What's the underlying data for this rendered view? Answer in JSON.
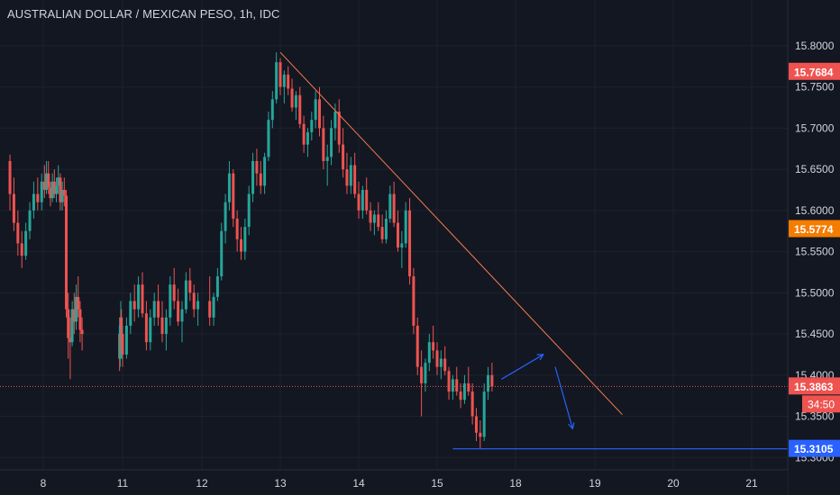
{
  "header": {
    "title": "AUSTRALIAN DOLLAR / MEXICAN PESO, 1h, IDC"
  },
  "colors": {
    "background": "#131722",
    "grid": "#1e222d",
    "text": "#d1d4dc",
    "up": "#26a69a",
    "down": "#ef5350",
    "trendline": "#f7525f",
    "drawing": "#2962ff",
    "orange_badge": "#f57c00"
  },
  "chart_data": {
    "type": "candlestick",
    "title": "AUSTRALIAN DOLLAR / MEXICAN PESO, 1h, IDC",
    "x_ticks": [
      "8",
      "11",
      "12",
      "13",
      "14",
      "15",
      "18",
      "19",
      "20",
      "21"
    ],
    "y_ticks": [
      "15.3000",
      "15.3500",
      "15.4000",
      "15.4500",
      "15.5000",
      "15.5500",
      "15.6000",
      "15.6500",
      "15.7000",
      "15.7500",
      "15.8000"
    ],
    "ylim": [
      15.285,
      15.825
    ],
    "grid": true,
    "price_badges": [
      {
        "value": "15.7684",
        "color": "#ef5350"
      },
      {
        "value": "15.5774",
        "color": "#f57c00"
      },
      {
        "value": "15.3863",
        "color": "#ef5350"
      },
      {
        "value": "15.3105",
        "color": "#2962ff"
      }
    ],
    "countdown": "34:50",
    "trendline": {
      "start": [
        13.0,
        15.792
      ],
      "end": [
        19.35,
        15.352
      ]
    },
    "support_level": {
      "value": 15.3105,
      "from_x": 15.2
    },
    "current_price": 15.3863,
    "projection_arrows": [
      {
        "from": [
          15.82,
          15.395
        ],
        "to": [
          18.35,
          15.425
        ]
      },
      {
        "from": [
          18.5,
          15.41
        ],
        "to": [
          18.72,
          15.335
        ]
      }
    ],
    "candles": [
      [
        7.58,
        15.66,
        15.668,
        15.6,
        15.62
      ],
      [
        7.63,
        15.62,
        15.64,
        15.575,
        15.585
      ],
      [
        7.68,
        15.585,
        15.6,
        15.545,
        15.56
      ],
      [
        7.73,
        15.56,
        15.575,
        15.53,
        15.545
      ],
      [
        7.78,
        15.545,
        15.585,
        15.54,
        15.575
      ],
      [
        7.83,
        15.575,
        15.61,
        15.565,
        15.6
      ],
      [
        7.88,
        15.6,
        15.635,
        15.59,
        15.62
      ],
      [
        7.93,
        15.62,
        15.64,
        15.6,
        15.61
      ],
      [
        7.98,
        15.61,
        15.645,
        15.6,
        15.635
      ],
      [
        8.03,
        15.635,
        15.655,
        15.615,
        15.625
      ],
      [
        8.08,
        15.625,
        15.66,
        15.62,
        15.645
      ],
      [
        8.13,
        15.645,
        15.66,
        15.62,
        15.628
      ],
      [
        8.18,
        15.628,
        15.635,
        15.605,
        15.615
      ],
      [
        8.23,
        15.615,
        15.645,
        15.61,
        15.635
      ],
      [
        8.28,
        15.635,
        15.65,
        15.615,
        15.62
      ],
      [
        8.33,
        15.62,
        15.64,
        15.61,
        15.63
      ],
      [
        8.38,
        15.63,
        15.655,
        15.62,
        15.64
      ],
      [
        8.43,
        15.64,
        15.645,
        15.6,
        15.61
      ],
      [
        8.48,
        15.61,
        15.635,
        15.6,
        15.625
      ],
      [
        8.53,
        15.625,
        15.64,
        15.605,
        15.618
      ],
      [
        8.58,
        15.618,
        15.625,
        15.47,
        15.48
      ],
      [
        8.63,
        15.48,
        15.5,
        15.42,
        15.445
      ],
      [
        8.68,
        15.445,
        15.47,
        15.395,
        15.44
      ],
      [
        8.73,
        15.44,
        15.49,
        15.435,
        15.48
      ],
      [
        8.78,
        15.48,
        15.5,
        15.45,
        15.465
      ],
      [
        8.83,
        15.465,
        15.51,
        15.455,
        15.495
      ],
      [
        8.88,
        15.495,
        15.52,
        15.47,
        15.48
      ],
      [
        8.93,
        15.48,
        15.49,
        15.44,
        15.455
      ],
      [
        8.98,
        15.455,
        15.47,
        15.43,
        15.45
      ],
      [
        10.75,
        15.45,
        15.47,
        15.405,
        15.42
      ],
      [
        10.8,
        15.42,
        15.47,
        15.41,
        15.46
      ],
      [
        10.85,
        15.46,
        15.49,
        15.44,
        15.47
      ],
      [
        10.9,
        15.47,
        15.48,
        15.43,
        15.44
      ],
      [
        10.95,
        15.44,
        15.46,
        15.42,
        15.45
      ],
      [
        11.0,
        15.45,
        15.46,
        15.41,
        15.425
      ],
      [
        11.05,
        15.425,
        15.47,
        15.42,
        15.46
      ],
      [
        11.1,
        15.46,
        15.5,
        15.45,
        15.49
      ],
      [
        11.15,
        15.49,
        15.51,
        15.465,
        15.48
      ],
      [
        11.2,
        15.48,
        15.52,
        15.47,
        15.51
      ],
      [
        11.25,
        15.51,
        15.525,
        15.47,
        15.475
      ],
      [
        11.3,
        15.475,
        15.49,
        15.43,
        15.44
      ],
      [
        11.35,
        15.44,
        15.48,
        15.43,
        15.47
      ],
      [
        11.4,
        15.47,
        15.5,
        15.46,
        15.49
      ],
      [
        11.45,
        15.49,
        15.51,
        15.46,
        15.47
      ],
      [
        11.5,
        15.47,
        15.49,
        15.44,
        15.45
      ],
      [
        11.55,
        15.45,
        15.48,
        15.43,
        15.47
      ],
      [
        11.6,
        15.47,
        15.52,
        15.46,
        15.51
      ],
      [
        11.65,
        15.51,
        15.53,
        15.48,
        15.49
      ],
      [
        11.7,
        15.49,
        15.505,
        15.46,
        15.465
      ],
      [
        11.75,
        15.465,
        15.49,
        15.44,
        15.48
      ],
      [
        11.8,
        15.48,
        15.525,
        15.475,
        15.515
      ],
      [
        11.85,
        15.515,
        15.53,
        15.49,
        15.5
      ],
      [
        11.9,
        15.5,
        15.51,
        15.47,
        15.48
      ],
      [
        11.95,
        15.48,
        15.5,
        15.46,
        15.49
      ],
      [
        12.1,
        15.49,
        15.52,
        15.46,
        15.47
      ],
      [
        12.15,
        15.47,
        15.5,
        15.46,
        15.495
      ],
      [
        12.2,
        15.495,
        15.53,
        15.49,
        15.52
      ],
      [
        12.25,
        15.52,
        15.585,
        15.515,
        15.575
      ],
      [
        12.3,
        15.575,
        15.62,
        15.56,
        15.61
      ],
      [
        12.35,
        15.61,
        15.66,
        15.6,
        15.645
      ],
      [
        12.4,
        15.645,
        15.65,
        15.58,
        15.59
      ],
      [
        12.45,
        15.59,
        15.6,
        15.55,
        15.565
      ],
      [
        12.5,
        15.565,
        15.58,
        15.54,
        15.55
      ],
      [
        12.55,
        15.55,
        15.59,
        15.54,
        15.58
      ],
      [
        12.6,
        15.58,
        15.63,
        15.57,
        15.62
      ],
      [
        12.65,
        15.62,
        15.67,
        15.61,
        15.66
      ],
      [
        12.7,
        15.66,
        15.675,
        15.63,
        15.645
      ],
      [
        12.75,
        15.645,
        15.66,
        15.62,
        15.63
      ],
      [
        12.8,
        15.63,
        15.67,
        15.62,
        15.665
      ],
      [
        12.85,
        15.665,
        15.72,
        15.66,
        15.71
      ],
      [
        12.9,
        15.71,
        15.745,
        15.7,
        15.735
      ],
      [
        12.95,
        15.735,
        15.792,
        15.73,
        15.78
      ],
      [
        13.0,
        15.78,
        15.785,
        15.74,
        15.75
      ],
      [
        13.05,
        15.75,
        15.77,
        15.73,
        15.765
      ],
      [
        13.1,
        15.765,
        15.775,
        15.74,
        15.748
      ],
      [
        13.15,
        15.748,
        15.76,
        15.72,
        15.725
      ],
      [
        13.2,
        15.725,
        15.745,
        15.71,
        15.74
      ],
      [
        13.25,
        15.74,
        15.75,
        15.7,
        15.705
      ],
      [
        13.3,
        15.705,
        15.715,
        15.67,
        15.68
      ],
      [
        13.35,
        15.68,
        15.7,
        15.665,
        15.695
      ],
      [
        13.4,
        15.695,
        15.72,
        15.685,
        15.71
      ],
      [
        13.45,
        15.71,
        15.745,
        15.7,
        15.735
      ],
      [
        13.5,
        15.735,
        15.75,
        15.69,
        15.7
      ],
      [
        13.55,
        15.7,
        15.715,
        15.65,
        15.66
      ],
      [
        13.6,
        15.66,
        15.68,
        15.63,
        15.665
      ],
      [
        13.65,
        15.665,
        15.71,
        15.655,
        15.7
      ],
      [
        13.7,
        15.7,
        15.73,
        15.685,
        15.72
      ],
      [
        13.75,
        15.72,
        15.735,
        15.67,
        15.68
      ],
      [
        13.8,
        15.68,
        15.7,
        15.64,
        15.65
      ],
      [
        13.85,
        15.65,
        15.67,
        15.62,
        15.63
      ],
      [
        13.9,
        15.63,
        15.665,
        15.62,
        15.655
      ],
      [
        13.95,
        15.655,
        15.67,
        15.615,
        15.62
      ],
      [
        14.0,
        15.62,
        15.635,
        15.59,
        15.6
      ],
      [
        14.05,
        15.6,
        15.63,
        15.59,
        15.625
      ],
      [
        14.1,
        15.625,
        15.64,
        15.595,
        15.6
      ],
      [
        14.15,
        15.6,
        15.61,
        15.575,
        15.585
      ],
      [
        14.2,
        15.585,
        15.6,
        15.57,
        15.595
      ],
      [
        14.25,
        15.595,
        15.61,
        15.575,
        15.58
      ],
      [
        14.3,
        15.58,
        15.595,
        15.56,
        15.565
      ],
      [
        14.35,
        15.565,
        15.6,
        15.56,
        15.59
      ],
      [
        14.4,
        15.59,
        15.63,
        15.585,
        15.62
      ],
      [
        14.45,
        15.62,
        15.635,
        15.58,
        15.585
      ],
      [
        14.5,
        15.585,
        15.6,
        15.55,
        15.555
      ],
      [
        14.55,
        15.555,
        15.575,
        15.53,
        15.56
      ],
      [
        14.6,
        15.56,
        15.61,
        15.555,
        15.6
      ],
      [
        14.65,
        15.6,
        15.615,
        15.51,
        15.52
      ],
      [
        14.7,
        15.52,
        15.53,
        15.45,
        15.46
      ],
      [
        14.75,
        15.46,
        15.47,
        15.4,
        15.41
      ],
      [
        14.8,
        15.41,
        15.43,
        15.35,
        15.39
      ],
      [
        14.85,
        15.39,
        15.42,
        15.38,
        15.415
      ],
      [
        14.9,
        15.415,
        15.45,
        15.405,
        15.44
      ],
      [
        14.95,
        15.44,
        15.46,
        15.42,
        15.43
      ],
      [
        15.0,
        15.43,
        15.44,
        15.4,
        15.41
      ],
      [
        15.05,
        15.41,
        15.43,
        15.395,
        15.42
      ],
      [
        15.1,
        15.42,
        15.435,
        15.4,
        15.405
      ],
      [
        15.15,
        15.405,
        15.41,
        15.37,
        15.38
      ],
      [
        15.2,
        15.38,
        15.4,
        15.37,
        15.395
      ],
      [
        15.25,
        15.395,
        15.41,
        15.375,
        15.38
      ],
      [
        15.3,
        15.38,
        15.39,
        15.36,
        15.37
      ],
      [
        15.35,
        15.37,
        15.4,
        15.365,
        15.39
      ],
      [
        15.4,
        15.39,
        15.41,
        15.375,
        15.38
      ],
      [
        15.45,
        15.38,
        15.39,
        15.34,
        15.35
      ],
      [
        15.5,
        15.35,
        15.36,
        15.32,
        15.33
      ],
      [
        15.55,
        15.33,
        15.345,
        15.311,
        15.325
      ],
      [
        15.6,
        15.325,
        15.39,
        15.32,
        15.38
      ],
      [
        15.65,
        15.38,
        15.41,
        15.37,
        15.4
      ],
      [
        15.7,
        15.4,
        15.415,
        15.38,
        15.3863
      ]
    ]
  }
}
